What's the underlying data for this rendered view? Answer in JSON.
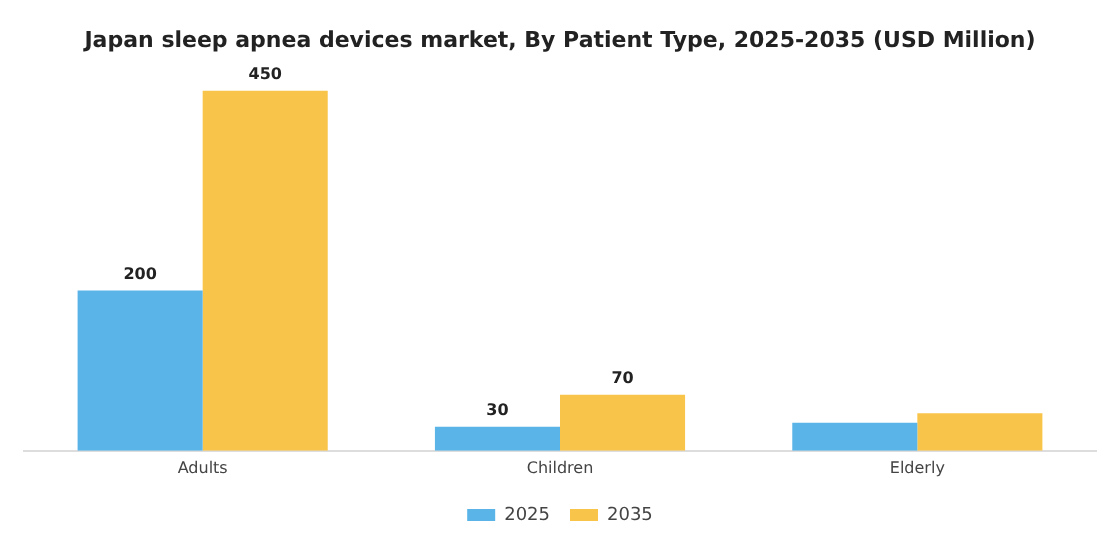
{
  "chart_data": {
    "type": "bar",
    "title": "Japan sleep apnea devices market, By Patient Type, 2025-2035 (USD Million)",
    "categories": [
      "Adults",
      "Children",
      "Elderly"
    ],
    "series": [
      {
        "name": "2025",
        "color": "#5ab4e8",
        "values": [
          200,
          30,
          35
        ],
        "value_labels": [
          "200",
          "30",
          null
        ]
      },
      {
        "name": "2035",
        "color": "#f8c54a",
        "values": [
          450,
          70,
          47
        ],
        "value_labels": [
          "450",
          "70",
          null
        ]
      }
    ],
    "legend": "bottom",
    "grid": false
  }
}
